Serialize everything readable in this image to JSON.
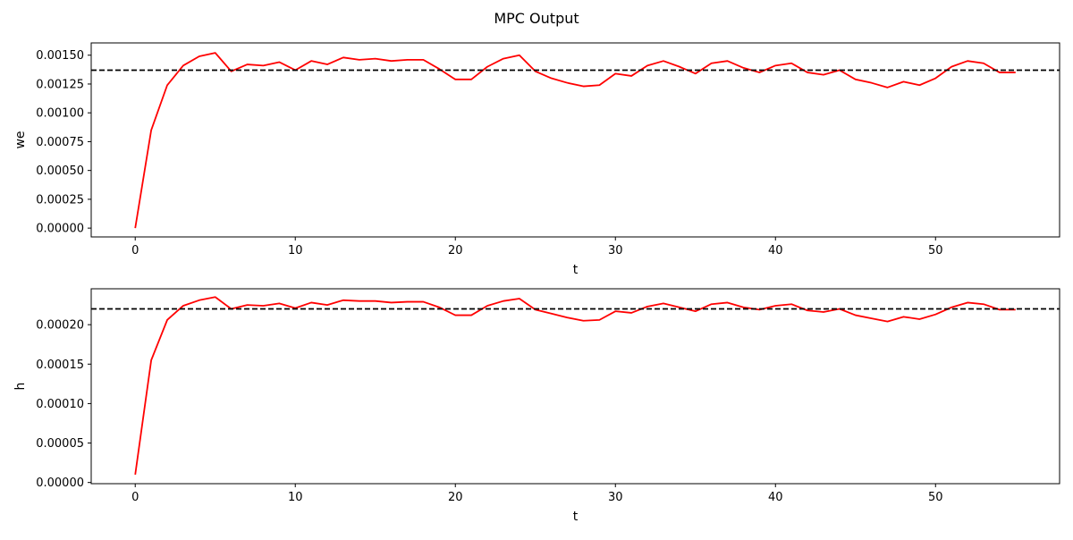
{
  "figure_title": "MPC Output",
  "chart_data": [
    {
      "type": "line",
      "title": "",
      "xlabel": "t",
      "ylabel": "we",
      "xlim": [
        -2.75,
        57.75
      ],
      "ylim": [
        -7.65e-05,
        0.0016065
      ],
      "xticks": [
        0,
        10,
        20,
        30,
        40,
        50
      ],
      "xtick_labels": [
        "0",
        "10",
        "20",
        "30",
        "40",
        "50"
      ],
      "yticks": [
        0,
        0.00025,
        0.0005,
        0.00075,
        0.001,
        0.00125,
        0.0015
      ],
      "ytick_labels": [
        "0.00000",
        "0.00025",
        "0.00050",
        "0.00075",
        "0.00100",
        "0.00125",
        "0.00150"
      ],
      "grid": false,
      "reference": {
        "y": 0.00137,
        "color": "#000000",
        "style": "dashed"
      },
      "series": [
        {
          "color": "#ff0000",
          "x": [
            0,
            1,
            2,
            3,
            4,
            5,
            6,
            7,
            8,
            9,
            10,
            11,
            12,
            13,
            14,
            15,
            16,
            17,
            18,
            19,
            20,
            21,
            22,
            23,
            24,
            25,
            26,
            27,
            28,
            29,
            30,
            31,
            32,
            33,
            34,
            35,
            36,
            37,
            38,
            39,
            40,
            41,
            42,
            43,
            44,
            45,
            46,
            47,
            48,
            49,
            50,
            51,
            52,
            53,
            54,
            55
          ],
          "values": [
            0.0,
            0.00085,
            0.00124,
            0.00141,
            0.00149,
            0.00152,
            0.00136,
            0.00142,
            0.00141,
            0.00144,
            0.00137,
            0.00145,
            0.00142,
            0.00148,
            0.00146,
            0.00147,
            0.00145,
            0.00146,
            0.00146,
            0.00138,
            0.00129,
            0.00129,
            0.0014,
            0.00147,
            0.0015,
            0.00136,
            0.0013,
            0.00126,
            0.00123,
            0.00124,
            0.00134,
            0.00132,
            0.00141,
            0.00145,
            0.0014,
            0.00134,
            0.00143,
            0.00145,
            0.00139,
            0.00135,
            0.00141,
            0.00143,
            0.00135,
            0.00133,
            0.00137,
            0.00129,
            0.00126,
            0.00122,
            0.00127,
            0.00124,
            0.0013,
            0.0014,
            0.00145,
            0.00143,
            0.00135,
            0.00135
          ]
        }
      ]
    },
    {
      "type": "line",
      "title": "",
      "xlabel": "t",
      "ylabel": "h",
      "xlim": [
        -2.75,
        57.75
      ],
      "ylim": [
        -1.5e-06,
        0.0002455
      ],
      "xticks": [
        0,
        10,
        20,
        30,
        40,
        50
      ],
      "xtick_labels": [
        "0",
        "10",
        "20",
        "30",
        "40",
        "50"
      ],
      "yticks": [
        0,
        5e-05,
        0.0001,
        0.00015,
        0.0002
      ],
      "ytick_labels": [
        "0.00000",
        "0.00005",
        "0.00010",
        "0.00015",
        "0.00020"
      ],
      "grid": false,
      "reference": {
        "y": 0.00022,
        "color": "#000000",
        "style": "dashed"
      },
      "series": [
        {
          "color": "#ff0000",
          "x": [
            0,
            1,
            2,
            3,
            4,
            5,
            6,
            7,
            8,
            9,
            10,
            11,
            12,
            13,
            14,
            15,
            16,
            17,
            18,
            19,
            20,
            21,
            22,
            23,
            24,
            25,
            26,
            27,
            28,
            29,
            30,
            31,
            32,
            33,
            34,
            35,
            36,
            37,
            38,
            39,
            40,
            41,
            42,
            43,
            44,
            45,
            46,
            47,
            48,
            49,
            50,
            51,
            52,
            53,
            54,
            55
          ],
          "values": [
            1e-05,
            0.000155,
            0.000206,
            0.000224,
            0.000231,
            0.000235,
            0.00022,
            0.000225,
            0.000224,
            0.000227,
            0.000221,
            0.000228,
            0.000225,
            0.000231,
            0.00023,
            0.00023,
            0.000228,
            0.000229,
            0.000229,
            0.000222,
            0.000212,
            0.000212,
            0.000224,
            0.00023,
            0.000233,
            0.000219,
            0.000214,
            0.000209,
            0.000205,
            0.000206,
            0.000217,
            0.000215,
            0.000223,
            0.000227,
            0.000222,
            0.000217,
            0.000226,
            0.000228,
            0.000222,
            0.000219,
            0.000224,
            0.000226,
            0.000218,
            0.000216,
            0.00022,
            0.000212,
            0.000208,
            0.000204,
            0.00021,
            0.000207,
            0.000213,
            0.000222,
            0.000228,
            0.000226,
            0.000219,
            0.000219
          ]
        }
      ]
    }
  ]
}
